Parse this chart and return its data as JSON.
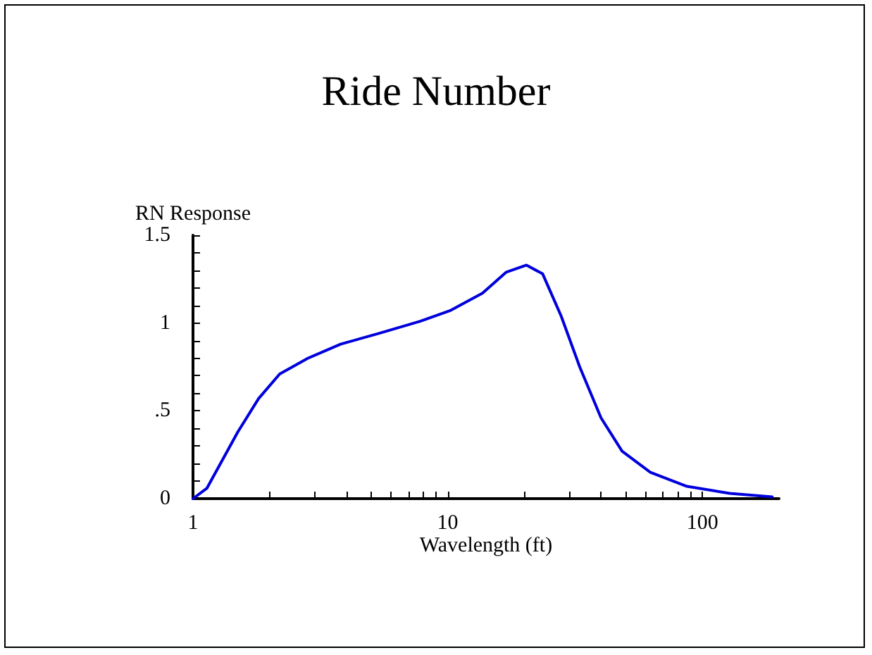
{
  "chart_data": {
    "type": "line",
    "title": "Ride Number",
    "xlabel": "Wavelength (ft)",
    "ylabel": "RN Response",
    "log": "x",
    "xlim": [
      1,
      200
    ],
    "ylim": [
      0,
      1.5
    ],
    "xticks": [
      1,
      {
        "value": 2,
        "label": null
      },
      {
        "value": 3,
        "label": null
      },
      {
        "value": 4,
        "label": null
      },
      {
        "value": 5,
        "label": null
      },
      {
        "value": 6,
        "label": null
      },
      {
        "value": 7,
        "label": null
      },
      {
        "value": 8,
        "label": null
      },
      {
        "value": 9,
        "label": null
      },
      10,
      {
        "value": 20,
        "label": null
      },
      {
        "value": 30,
        "label": null
      },
      {
        "value": 40,
        "label": null
      },
      {
        "value": 50,
        "label": null
      },
      {
        "value": 60,
        "label": null
      },
      {
        "value": 70,
        "label": null
      },
      {
        "value": 80,
        "label": null
      },
      {
        "value": 90,
        "label": null
      },
      100
    ],
    "yticks": [
      0,
      {
        "value": 0.1,
        "label": null
      },
      {
        "value": 0.2,
        "label": null
      },
      {
        "value": 0.3,
        "label": null
      },
      {
        "value": 0.4,
        "label": null
      },
      {
        "value": 0.5,
        "label": ".5"
      },
      {
        "value": 0.6,
        "label": null
      },
      {
        "value": 0.7,
        "label": null
      },
      {
        "value": 0.8,
        "label": null
      },
      {
        "value": 0.9,
        "label": null
      },
      1,
      {
        "value": 1.1,
        "label": null
      },
      {
        "value": 1.2,
        "label": null
      },
      {
        "value": 1.3,
        "label": null
      },
      {
        "value": 1.4,
        "label": null
      },
      1.5
    ],
    "grid": false,
    "marker": "none",
    "line_style": "solid",
    "x": [
      1,
      1.135,
      1.5,
      1.81,
      2.19,
      2.83,
      3.8,
      5.34,
      7.8,
      10.2,
      13.7,
      17.0,
      20.4,
      23.6,
      27.9,
      33.0,
      40.0,
      48.4,
      62.5,
      87,
      128,
      188
    ],
    "series": [
      {
        "color": "#0000dd",
        "values": [
          0,
          0.06,
          0.38,
          0.57,
          0.71,
          0.8,
          0.88,
          0.94,
          1.01,
          1.07,
          1.17,
          1.29,
          1.33,
          1.28,
          1.04,
          0.75,
          0.46,
          0.27,
          0.15,
          0.07,
          0.03,
          0.01
        ]
      }
    ]
  }
}
